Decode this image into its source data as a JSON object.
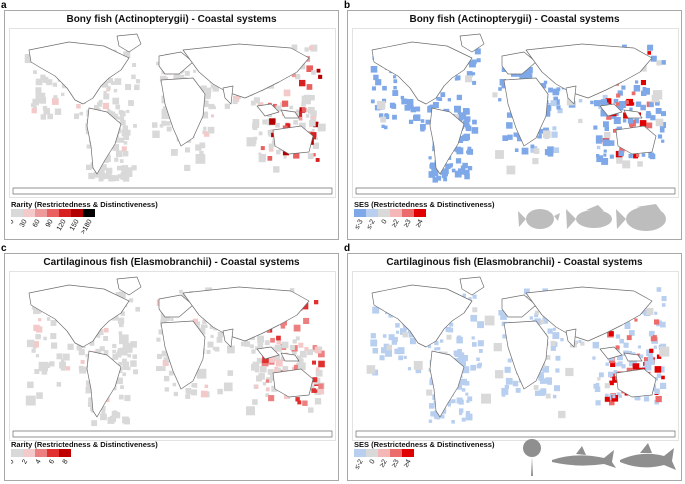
{
  "panels": [
    {
      "letter": "a",
      "title": "Bony fish (Actinopterygii) - Coastal systems",
      "legend_title": "Rarity (Restrictedness & Distinctiveness)",
      "legend_type": "rarity",
      "ticks": [
        "0",
        "30",
        "60",
        "90",
        "120",
        "150",
        ">180"
      ],
      "colors": [
        "#d9d9d9",
        "#f4c9c9",
        "#ee9a9a",
        "#e86060",
        "#d92020",
        "#b30000",
        "#000000"
      ]
    },
    {
      "letter": "b",
      "title": "Bony fish (Actinopterygii) - Coastal systems",
      "legend_title": "SES (Restrictedness & Distinctiveness)",
      "legend_type": "ses",
      "ticks": [
        "≤-3",
        "≤-2",
        "0",
        "≥2",
        "≥3",
        "≥4"
      ],
      "colors": [
        "#7fa8e8",
        "#b9cff0",
        "#d9d9d9",
        "#f4b6b6",
        "#ec6b6b",
        "#e00000"
      ]
    },
    {
      "letter": "c",
      "title": "Cartilaginous fish (Elasmobranchii) - Coastal systems",
      "legend_title": "Rarity (Restrictedness & Distinctiveness)",
      "legend_type": "rarity",
      "ticks": [
        "0",
        "2",
        "4",
        "6",
        "8"
      ],
      "colors": [
        "#d9d9d9",
        "#f4c9c9",
        "#ec8080",
        "#e03030",
        "#c00000"
      ]
    },
    {
      "letter": "d",
      "title": "Cartilaginous fish (Elasmobranchii) - Coastal systems",
      "legend_title": "SES (Restrictedness & Distinctiveness)",
      "legend_type": "ses",
      "ticks": [
        "≤-2",
        "0",
        "≥2",
        "≥3",
        "≥4"
      ],
      "colors": [
        "#b9cff0",
        "#d9d9d9",
        "#f4b6b6",
        "#ec6b6b",
        "#e00000"
      ]
    }
  ],
  "silhouette_icons": {
    "b": [
      "pufferfish-icon",
      "reef-fish-icon",
      "grouper-icon"
    ],
    "d": [
      "ray-icon",
      "shark-icon",
      "tuna-shark-icon"
    ]
  },
  "silhouette_color": "#bdbdbd",
  "map_colors": {
    "land_fill": "#ffffff",
    "coast_line": "#6d6d6d",
    "low_cell": "#d9d9d9"
  }
}
